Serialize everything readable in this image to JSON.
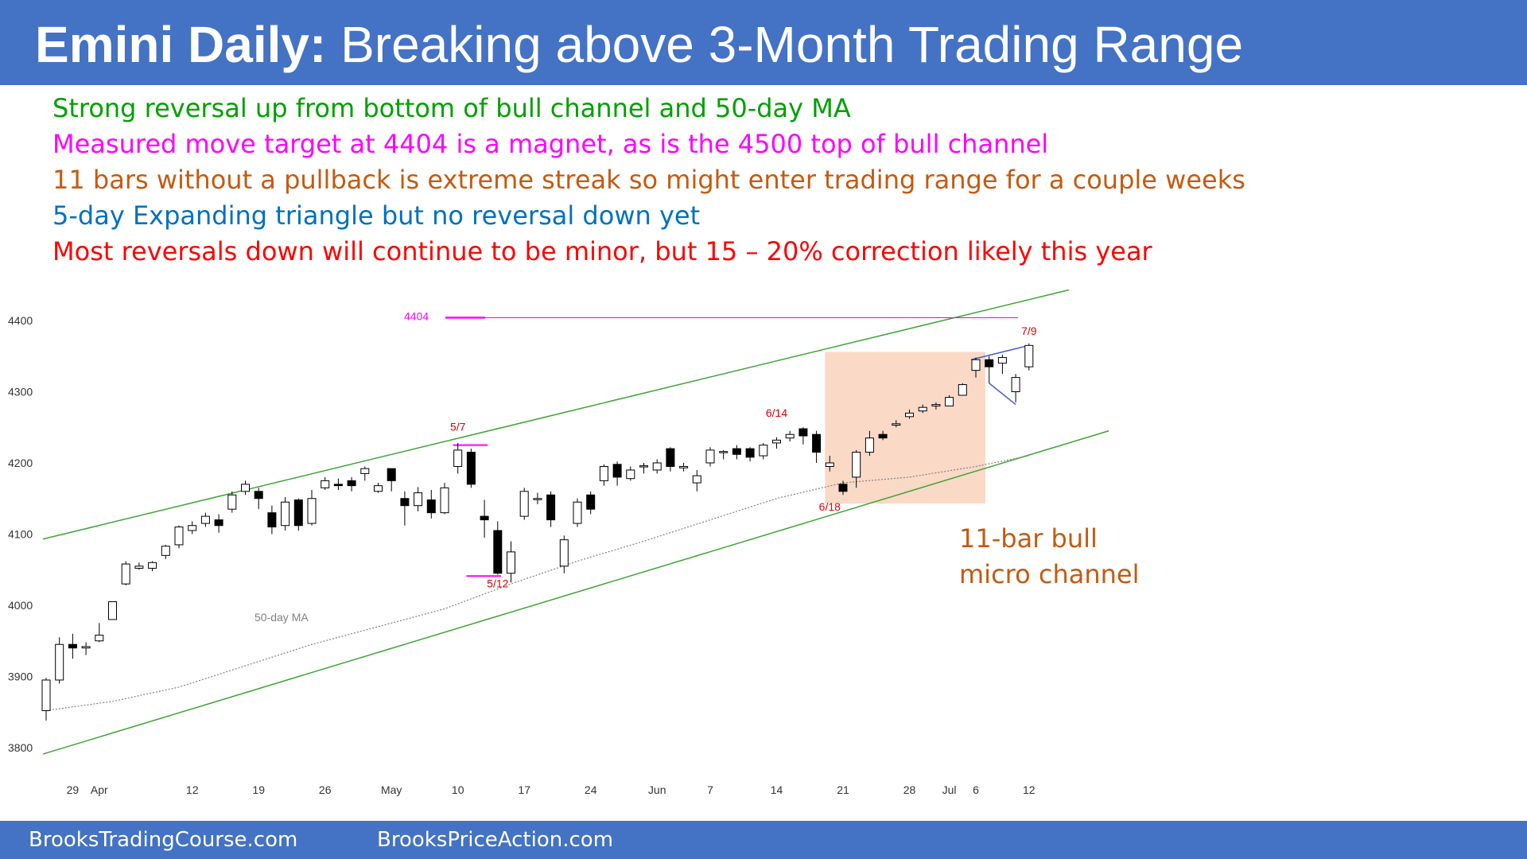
{
  "header": {
    "title_bold": "Emini Daily:",
    "title_rest": " Breaking above 3-Month Trading Range",
    "bg_color": "#4472c4"
  },
  "notes": [
    {
      "text": "Strong reversal up from bottom of bull channel and 50-day MA",
      "color": "#00a000"
    },
    {
      "text": "Measured move target at 4404 is a magnet, as is the 4500 top of bull channel",
      "color": "#ff00ff"
    },
    {
      "text": "11 bars without a pullback is extreme streak so might enter trading range for a couple weeks",
      "color": "#c55a11"
    },
    {
      "text": "5-day Expanding triangle but no reversal down yet",
      "color": "#0070c0"
    },
    {
      "text": "Most reversals down will continue to be minor, but 15 – 20% correction likely this year",
      "color": "#ff0000"
    }
  ],
  "footer": {
    "left": "BrooksTradingCourse.com",
    "right": "BrooksPriceAction.com"
  },
  "chart_data": {
    "type": "candlestick",
    "ylim": [
      3780,
      4440
    ],
    "y_ticks": [
      3800,
      3900,
      4000,
      4100,
      4200,
      4300,
      4400
    ],
    "x_ticks": [
      {
        "label": "29",
        "i": 2
      },
      {
        "label": "Apr",
        "i": 4
      },
      {
        "label": "12",
        "i": 11
      },
      {
        "label": "19",
        "i": 16
      },
      {
        "label": "26",
        "i": 21
      },
      {
        "label": "May",
        "i": 26
      },
      {
        "label": "10",
        "i": 31
      },
      {
        "label": "17",
        "i": 36
      },
      {
        "label": "24",
        "i": 41
      },
      {
        "label": "Jun",
        "i": 46
      },
      {
        "label": "7",
        "i": 50
      },
      {
        "label": "14",
        "i": 55
      },
      {
        "label": "21",
        "i": 60
      },
      {
        "label": "28",
        "i": 65
      },
      {
        "label": "Jul",
        "i": 68
      },
      {
        "label": "6",
        "i": 70
      },
      {
        "label": "12",
        "i": 74
      }
    ],
    "candles": [
      [
        3852,
        3895,
        3838,
        3898
      ],
      [
        3895,
        3945,
        3890,
        3955
      ],
      [
        3945,
        3940,
        3925,
        3960
      ],
      [
        3940,
        3942,
        3930,
        3948
      ],
      [
        3950,
        3958,
        3948,
        3975
      ],
      [
        3980,
        4005,
        3980,
        4005
      ],
      [
        4030,
        4058,
        4028,
        4062
      ],
      [
        4052,
        4055,
        4050,
        4060
      ],
      [
        4052,
        4060,
        4048,
        4062
      ],
      [
        4070,
        4083,
        4065,
        4085
      ],
      [
        4085,
        4110,
        4080,
        4112
      ],
      [
        4105,
        4112,
        4100,
        4118
      ],
      [
        4115,
        4125,
        4110,
        4130
      ],
      [
        4120,
        4112,
        4102,
        4128
      ],
      [
        4135,
        4155,
        4130,
        4160
      ],
      [
        4160,
        4170,
        4155,
        4175
      ],
      [
        4160,
        4150,
        4135,
        4165
      ],
      [
        4130,
        4110,
        4100,
        4140
      ],
      [
        4112,
        4145,
        4105,
        4152
      ],
      [
        4148,
        4112,
        4105,
        4150
      ],
      [
        4115,
        4150,
        4112,
        4162
      ],
      [
        4165,
        4175,
        4162,
        4180
      ],
      [
        4170,
        4168,
        4162,
        4178
      ],
      [
        4175,
        4168,
        4160,
        4180
      ],
      [
        4185,
        4192,
        4175,
        4195
      ],
      [
        4160,
        4168,
        4158,
        4172
      ],
      [
        4192,
        4175,
        4160,
        4192
      ],
      [
        4150,
        4140,
        4112,
        4160
      ],
      [
        4140,
        4158,
        4132,
        4166
      ],
      [
        4148,
        4130,
        4122,
        4162
      ],
      [
        4130,
        4165,
        4128,
        4172
      ],
      [
        4195,
        4218,
        4185,
        4228
      ],
      [
        4215,
        4170,
        4165,
        4220
      ],
      [
        4125,
        4120,
        4095,
        4148
      ],
      [
        4105,
        4045,
        4043,
        4118
      ],
      [
        4045,
        4075,
        4032,
        4090
      ],
      [
        4125,
        4160,
        4120,
        4165
      ],
      [
        4150,
        4150,
        4142,
        4158
      ],
      [
        4155,
        4120,
        4110,
        4160
      ],
      [
        4055,
        4092,
        4045,
        4098
      ],
      [
        4115,
        4145,
        4110,
        4150
      ],
      [
        4155,
        4135,
        4128,
        4160
      ],
      [
        4175,
        4195,
        4168,
        4198
      ],
      [
        4198,
        4180,
        4168,
        4202
      ],
      [
        4178,
        4190,
        4175,
        4195
      ],
      [
        4195,
        4196,
        4185,
        4200
      ],
      [
        4190,
        4200,
        4185,
        4205
      ],
      [
        4220,
        4195,
        4188,
        4222
      ],
      [
        4193,
        4195,
        4188,
        4200
      ],
      [
        4172,
        4182,
        4160,
        4190
      ],
      [
        4200,
        4218,
        4195,
        4222
      ],
      [
        4215,
        4216,
        4205,
        4218
      ],
      [
        4220,
        4212,
        4205,
        4225
      ],
      [
        4220,
        4208,
        4202,
        4222
      ],
      [
        4210,
        4225,
        4205,
        4228
      ],
      [
        4228,
        4232,
        4220,
        4236
      ],
      [
        4235,
        4240,
        4230,
        4245
      ],
      [
        4248,
        4238,
        4226,
        4250
      ],
      [
        4240,
        4215,
        4200,
        4245
      ],
      [
        4195,
        4200,
        4188,
        4210
      ],
      [
        4170,
        4160,
        4155,
        4175
      ],
      [
        4180,
        4215,
        4165,
        4218
      ],
      [
        4215,
        4235,
        4210,
        4245
      ],
      [
        4240,
        4235,
        4232,
        4245
      ],
      [
        4253,
        4255,
        4250,
        4260
      ],
      [
        4265,
        4270,
        4262,
        4275
      ],
      [
        4273,
        4278,
        4270,
        4282
      ],
      [
        4280,
        4282,
        4275,
        4285
      ],
      [
        4280,
        4292,
        4280,
        4295
      ],
      [
        4295,
        4310,
        4295,
        4312
      ],
      [
        4330,
        4345,
        4320,
        4348
      ],
      [
        4345,
        4335,
        4312,
        4350
      ],
      [
        4340,
        4348,
        4325,
        4352
      ],
      [
        4300,
        4320,
        4285,
        4325
      ],
      [
        4335,
        4365,
        4330,
        4368
      ]
    ],
    "ma50": [
      [
        0,
        3852
      ],
      [
        5,
        3865
      ],
      [
        10,
        3885
      ],
      [
        15,
        3915
      ],
      [
        20,
        3945
      ],
      [
        25,
        3970
      ],
      [
        30,
        3995
      ],
      [
        35,
        4030
      ],
      [
        40,
        4062
      ],
      [
        45,
        4090
      ],
      [
        50,
        4120
      ],
      [
        55,
        4150
      ],
      [
        60,
        4172
      ],
      [
        65,
        4180
      ],
      [
        70,
        4195
      ],
      [
        74,
        4210
      ]
    ],
    "channel_top": [
      [
        0,
        4093
      ],
      [
        77,
        4443
      ]
    ],
    "channel_bottom": [
      [
        0,
        3791
      ],
      [
        80,
        4245
      ]
    ],
    "target_line": {
      "label": "4404",
      "value": 4404,
      "color": "#ff00ff"
    },
    "ma_label": "50-day MA",
    "annotations": [
      {
        "label": "5/7",
        "i": 31,
        "y": 4245,
        "color": "#e00000"
      },
      {
        "label": "5/12",
        "i": 34,
        "y": 4025,
        "color": "#e00000"
      },
      {
        "label": "6/14",
        "i": 55,
        "y": 4265,
        "color": "#e00000"
      },
      {
        "label": "6/18",
        "i": 59,
        "y": 4133,
        "color": "#e00000"
      },
      {
        "label": "7/9",
        "i": 74,
        "y": 4380,
        "color": "#e00000"
      }
    ],
    "micro_channel_label": [
      "11-bar bull",
      "micro channel"
    ],
    "micro_channel_box": {
      "i_start": 59,
      "i_end": 70,
      "y_top": 4356,
      "y_bottom": 4143,
      "fill": "#fbd9c7"
    }
  }
}
